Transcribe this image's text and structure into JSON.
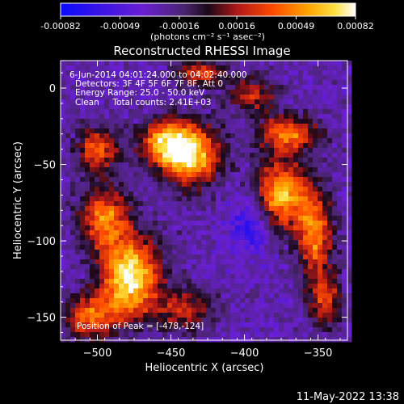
{
  "chart_data": {
    "type": "heatmap",
    "title": "Reconstructed RHESSI Image",
    "xlabel": "Heliocentric X (arcsec)",
    "ylabel": "Heliocentric Y (arcsec)",
    "xlim": [
      -525,
      -330
    ],
    "ylim": [
      -165,
      18
    ],
    "x_ticks": [
      -500,
      -450,
      -400,
      -350
    ],
    "y_ticks": [
      0,
      -50,
      -100,
      -150
    ],
    "colorbar": {
      "min": -0.00082,
      "max": 0.00082,
      "ticks": [
        "-0.00082",
        "-0.00049",
        "-0.00016",
        "0.00016",
        "0.00049",
        "0.00082"
      ],
      "units": "(photons cm⁻² s⁻¹ asec⁻²)",
      "colors": [
        "#0a0aff",
        "#6a1fd1",
        "#5a2a9a",
        "#2a0a2a",
        "#c0201a",
        "#ff7a00",
        "#ffd21a",
        "#ffffff"
      ]
    },
    "annotations": [
      "6-Jun-2014 04:01:24.000 to 04:02:40.000",
      "Detectors: 3F 4F 5F 6F 7F 8F, Att 0",
      "Energy Range: 25.0 - 50.0 keV",
      "Clean     Total counts: 2.41E+03"
    ],
    "peak_label": "Position of Peak = [-478,-124]",
    "peak": [
      -478,
      -124
    ],
    "hotspots": [
      {
        "x": -478,
        "y": -124,
        "value": 0.00082,
        "sx": 14,
        "sy": 18
      },
      {
        "x": -437,
        "y": -44,
        "value": 0.0007,
        "sx": 14,
        "sy": 14
      },
      {
        "x": -455,
        "y": -35,
        "value": 0.00045,
        "sx": 12,
        "sy": 10
      },
      {
        "x": -375,
        "y": -70,
        "value": 0.00062,
        "sx": 12,
        "sy": 16
      },
      {
        "x": -352,
        "y": -95,
        "value": 0.0005,
        "sx": 8,
        "sy": 20
      },
      {
        "x": -370,
        "y": -30,
        "value": 0.00048,
        "sx": 14,
        "sy": 8
      },
      {
        "x": -495,
        "y": -85,
        "value": 0.00045,
        "sx": 12,
        "sy": 14
      },
      {
        "x": -505,
        "y": -150,
        "value": 0.0004,
        "sx": 12,
        "sy": 10
      },
      {
        "x": -500,
        "y": -40,
        "value": 0.00035,
        "sx": 10,
        "sy": 10
      },
      {
        "x": -430,
        "y": 10,
        "value": 0.0003,
        "sx": 12,
        "sy": 6
      },
      {
        "x": -440,
        "y": -145,
        "value": 0.0002,
        "sx": 14,
        "sy": 10
      },
      {
        "x": -395,
        "y": -5,
        "value": 0.00022,
        "sx": 12,
        "sy": 8
      },
      {
        "x": -345,
        "y": -140,
        "value": 0.0003,
        "sx": 8,
        "sy": 12
      }
    ],
    "coldspots": [
      {
        "x": -395,
        "y": -90,
        "value": -0.00065,
        "sx": 10,
        "sy": 12
      },
      {
        "x": -410,
        "y": -118,
        "value": -0.0003,
        "sx": 16,
        "sy": 12
      },
      {
        "x": -450,
        "y": -100,
        "value": -0.00025,
        "sx": 12,
        "sy": 12
      },
      {
        "x": -340,
        "y": -150,
        "value": -0.0003,
        "sx": 10,
        "sy": 10
      }
    ]
  },
  "footer": {
    "date": "11-May-2022 13:38"
  }
}
